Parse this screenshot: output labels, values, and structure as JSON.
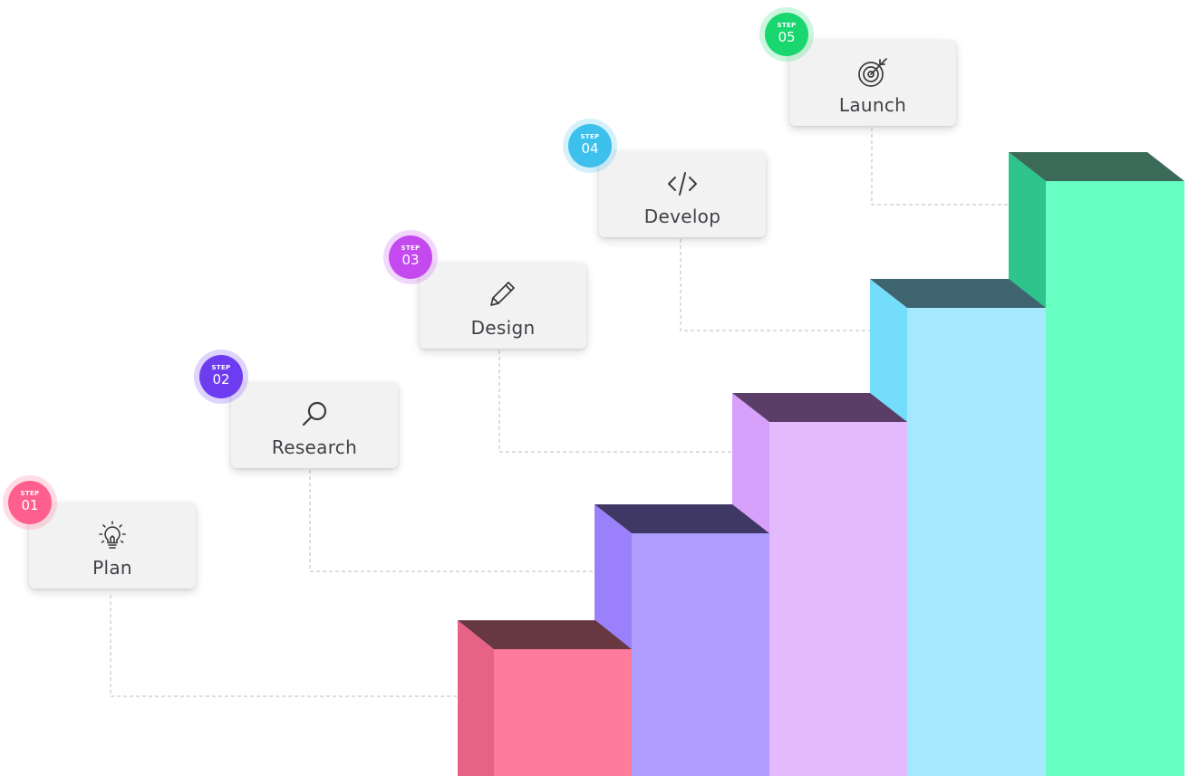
{
  "steps": [
    {
      "step_label": "STEP",
      "number": "01",
      "label": "Plan",
      "icon": "lightbulb-icon",
      "badge_color": "#ff5f8c",
      "bar_colors": {
        "front": "#ff7b9c",
        "side": "#e76386",
        "top": "#673841"
      }
    },
    {
      "step_label": "STEP",
      "number": "02",
      "label": "Research",
      "icon": "search-icon",
      "badge_color": "#6e3cf0",
      "bar_colors": {
        "front": "#ae9dff",
        "side": "#9a81fb",
        "top": "#3f3764"
      }
    },
    {
      "step_label": "STEP",
      "number": "03",
      "label": "Design",
      "icon": "pencil-icon",
      "badge_color": "#c44af0",
      "bar_colors": {
        "front": "#e4baff",
        "side": "#d7a0fb",
        "top": "#5a3e67"
      }
    },
    {
      "step_label": "STEP",
      "number": "04",
      "label": "Develop",
      "icon": "code-icon",
      "badge_color": "#3dc0eb",
      "bar_colors": {
        "front": "#a6e8fd",
        "side": "#74ddfb",
        "top": "#3e6470"
      }
    },
    {
      "step_label": "STEP",
      "number": "05",
      "label": "Launch",
      "icon": "target-icon",
      "badge_color": "#1ad66f",
      "bar_colors": {
        "front": "#68ffc2",
        "side": "#2ec48c",
        "top": "#3b6b58"
      }
    }
  ],
  "colors": {
    "card_background": "#f2f2f2",
    "label_text": "#3f3f46",
    "icon_stroke": "#3a3a3a",
    "connector_line": "#bdbdbd"
  }
}
